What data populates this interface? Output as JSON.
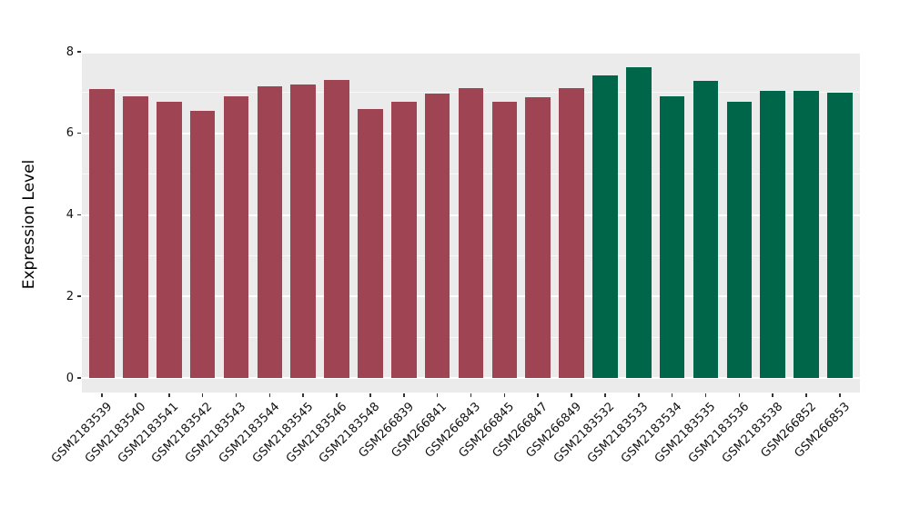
{
  "chart_data": {
    "type": "bar",
    "title": "",
    "xlabel": "",
    "ylabel": "Expression Level",
    "categories": [
      "GSM2183539",
      "GSM2183540",
      "GSM2183541",
      "GSM2183542",
      "GSM2183543",
      "GSM2183544",
      "GSM2183545",
      "GSM2183546",
      "GSM2183548",
      "GSM266839",
      "GSM266841",
      "GSM266843",
      "GSM266845",
      "GSM266847",
      "GSM266849",
      "GSM2183532",
      "GSM2183533",
      "GSM2183534",
      "GSM2183535",
      "GSM2183536",
      "GSM2183538",
      "GSM266852",
      "GSM266853"
    ],
    "values": [
      7.08,
      6.9,
      6.78,
      6.55,
      6.92,
      7.15,
      7.2,
      7.3,
      6.6,
      6.78,
      6.98,
      7.12,
      6.78,
      6.88,
      7.12,
      7.42,
      7.62,
      6.9,
      7.28,
      6.78,
      7.05,
      7.05,
      7.0
    ],
    "groups": [
      "group1",
      "group1",
      "group1",
      "group1",
      "group1",
      "group1",
      "group1",
      "group1",
      "group1",
      "group1",
      "group1",
      "group1",
      "group1",
      "group1",
      "group1",
      "group2",
      "group2",
      "group2",
      "group2",
      "group2",
      "group2",
      "group2",
      "group2"
    ],
    "group_colors": {
      "group1": "#9E4452",
      "group2": "#00664A"
    },
    "yticks": [
      0,
      2,
      4,
      6,
      8
    ],
    "minor_yticks": [
      1,
      3,
      5,
      7
    ],
    "ylim": [
      -0.35,
      8.0
    ],
    "bar_width_fraction": 0.75,
    "x_expand": 0.6,
    "x_tick_rotation": 45,
    "grid": true,
    "legend_position": "none",
    "panel_bg": "#EBEBEB",
    "grid_color": "#FFFFFF"
  }
}
